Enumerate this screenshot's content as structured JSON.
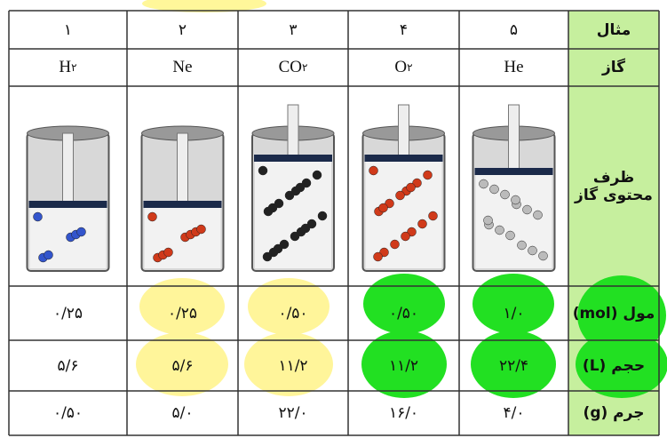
{
  "table": {
    "row_headers": [
      "مثال",
      "گاز",
      "ظرف محتوی گاز",
      "مول (mol)",
      "حجم (L)",
      "جرم (g)"
    ],
    "columns": [
      {
        "number": "۱",
        "gas": {
          "formula": "H",
          "subscript": "۲"
        },
        "mol": "۰/۲۵",
        "volume": "۵/۶",
        "mass": "۰/۵۰"
      },
      {
        "number": "۲",
        "gas": {
          "formula": "Ne"
        },
        "mol": "۰/۲۵",
        "volume": "۵/۶",
        "mass": "۵/۰"
      },
      {
        "number": "۳",
        "gas": {
          "formula": "CO",
          "subscript": "۲"
        },
        "mol": "۰/۵۰",
        "volume": "۱۱/۲",
        "mass": "۲۲/۰"
      },
      {
        "number": "۴",
        "gas": {
          "formula": "O",
          "subscript": "۲"
        },
        "mol": "۰/۵۰",
        "volume": "۱۱/۲",
        "mass": "۱۶/۰"
      },
      {
        "number": "۵",
        "gas": {
          "formula": "He"
        },
        "mol": "۱/۰",
        "volume": "۲۲/۴",
        "mass": "۴/۰"
      }
    ]
  }
}
